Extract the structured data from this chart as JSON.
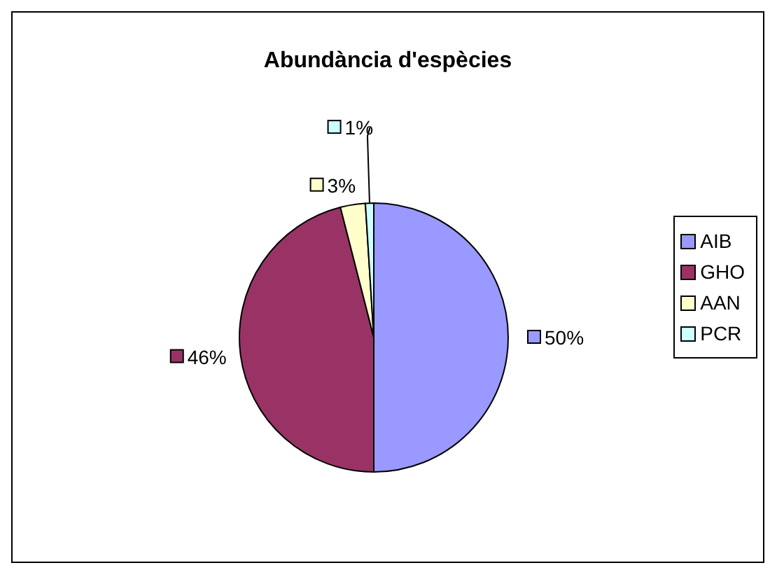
{
  "chart_data": {
    "type": "pie",
    "title": "Abundància d'espècies",
    "categories": [
      "AIB",
      "GHO",
      "AAN",
      "PCR"
    ],
    "values": [
      50,
      46,
      3,
      1
    ],
    "value_labels": [
      "50%",
      "46%",
      "3%",
      "1%"
    ],
    "colors": [
      "#9999ff",
      "#993366",
      "#ffffcc",
      "#ccffff"
    ],
    "legend": "right"
  }
}
